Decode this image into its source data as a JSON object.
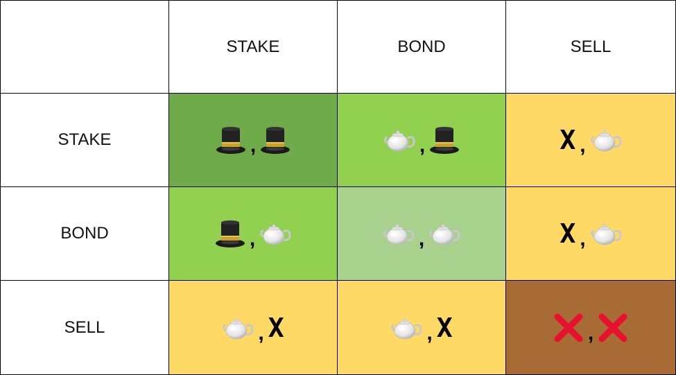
{
  "matrix": {
    "col_headers": [
      "STAKE",
      "BOND",
      "SELL"
    ],
    "row_headers": [
      "STAKE",
      "BOND",
      "SELL"
    ],
    "colors": {
      "dark_green": "#6fab4b",
      "green": "#92d050",
      "light_green": "#a9d18e",
      "yellow": "#ffd966",
      "brown": "#a86b35"
    },
    "cells": [
      [
        {
          "left": "top-hat-icon",
          "right": "top-hat-icon",
          "color": "#6fab4b"
        },
        {
          "left": "teapot-icon",
          "right": "top-hat-icon",
          "color": "#92d050"
        },
        {
          "left": "X",
          "right": "teapot-icon",
          "color": "#ffd966"
        }
      ],
      [
        {
          "left": "top-hat-icon",
          "right": "teapot-icon",
          "color": "#92d050"
        },
        {
          "left": "teapot-icon",
          "right": "teapot-icon",
          "color": "#a9d18e"
        },
        {
          "left": "X",
          "right": "teapot-icon",
          "color": "#ffd966"
        }
      ],
      [
        {
          "left": "teapot-icon",
          "right": "X",
          "color": "#ffd966"
        },
        {
          "left": "teapot-icon",
          "right": "X",
          "color": "#ffd966"
        },
        {
          "left": "red-cross-icon",
          "right": "red-cross-icon",
          "color": "#a86b35"
        }
      ]
    ],
    "separator": ","
  }
}
